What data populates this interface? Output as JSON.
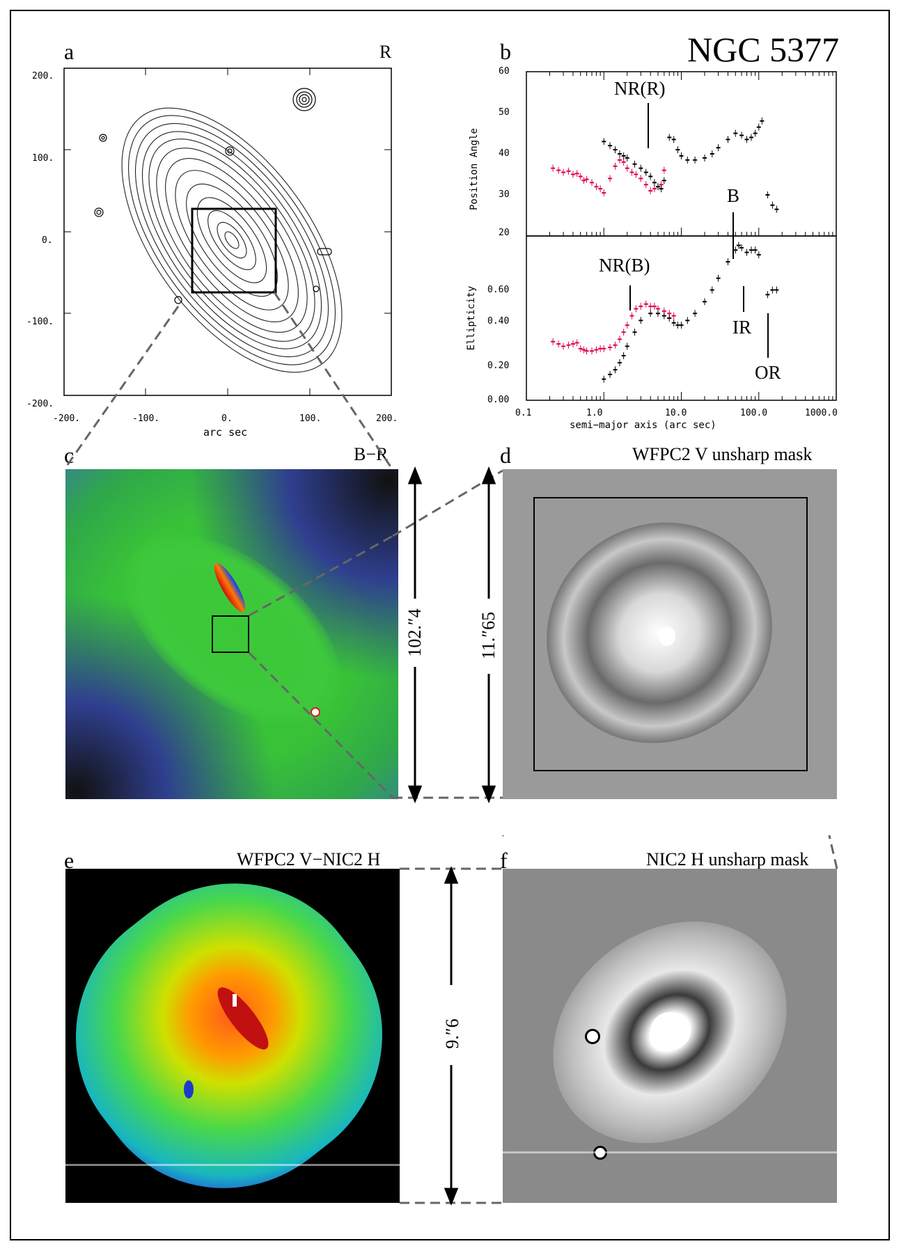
{
  "figure": {
    "galaxy_name": "NGC 5377"
  },
  "panels": {
    "a": {
      "label": "a",
      "band": "R",
      "x_ticks": [
        "-200.",
        "-100.",
        "0.",
        "100.",
        "200."
      ],
      "y_ticks": [
        "200.",
        "100.",
        "0.",
        "-100.",
        "-200."
      ],
      "xlabel": "arc sec"
    },
    "b": {
      "label": "b"
    },
    "c": {
      "label": "c",
      "title": "B−R",
      "scale": "102.″4"
    },
    "d": {
      "label": "d",
      "title": "WFPC2 V unsharp mask",
      "scale": "11.″65"
    },
    "e": {
      "label": "e",
      "title": "WFPC2 V−NIC2 H",
      "scale": "9.″6"
    },
    "f": {
      "label": "f",
      "title": "NIC2 H unsharp mask"
    }
  },
  "chart_data": [
    {
      "type": "scatter",
      "panel": "b-top",
      "ylabel": "Position Angle",
      "xscale": "log",
      "xlim": [
        0.1,
        1000.0
      ],
      "ylim": [
        20,
        60
      ],
      "yticks": [
        "60",
        "50",
        "40",
        "30",
        "20"
      ],
      "annotations": [
        "NR(R)"
      ],
      "series": [
        {
          "color": "#e0004a",
          "x": [
            0.22,
            0.26,
            0.3,
            0.35,
            0.4,
            0.45,
            0.5,
            0.55,
            0.6,
            0.7,
            0.8,
            0.9,
            1.0,
            1.2,
            1.4,
            1.6,
            1.8,
            2.0,
            2.3,
            2.6,
            3.0,
            3.5,
            4.0,
            4.5,
            5.0,
            5.5,
            6.0
          ],
          "y": [
            36.5,
            36.0,
            35.5,
            35.8,
            35.0,
            35.2,
            34.5,
            33.5,
            33.8,
            33.0,
            32.0,
            31.5,
            30.5,
            34.0,
            37.0,
            38.5,
            38.0,
            36.5,
            35.5,
            35.0,
            34.0,
            32.5,
            31.0,
            31.5,
            32.0,
            32.5,
            36.0
          ]
        },
        {
          "color": "#000000",
          "x": [
            1.0,
            1.2,
            1.4,
            1.6,
            1.8,
            2.0,
            2.5,
            3.0,
            3.5,
            4.0,
            4.5,
            5.0,
            5.5,
            6.0,
            7.0,
            8.0,
            9.0,
            10.0,
            12.0,
            15.0,
            20.0,
            25.0,
            30.0,
            40.0,
            50.0,
            60.0,
            70.0,
            80.0,
            90.0,
            100.0,
            110.0,
            130.0,
            150.0,
            170.0
          ],
          "y": [
            43.0,
            42.0,
            41.0,
            40.0,
            39.5,
            39.0,
            37.5,
            36.5,
            35.5,
            34.5,
            33.0,
            32.0,
            31.5,
            33.5,
            44.0,
            43.5,
            41.0,
            39.5,
            38.5,
            38.5,
            39.0,
            40.0,
            41.5,
            43.5,
            45.0,
            44.5,
            43.5,
            44.0,
            45.0,
            46.5,
            48.0,
            30.0,
            27.5,
            26.5
          ]
        }
      ]
    },
    {
      "type": "scatter",
      "panel": "b-bottom",
      "xlabel": "semi−major axis (arc sec)",
      "ylabel": "Ellipticity",
      "xscale": "log",
      "xlim": [
        0.1,
        1000.0
      ],
      "ylim": [
        0.0,
        0.7
      ],
      "xticks": [
        "0.1",
        "1.0",
        "10.0",
        "100.0",
        "1000.0"
      ],
      "yticks": [
        "0.60",
        "0.40",
        "0.20",
        "0.00"
      ],
      "annotations": [
        "B",
        "NR(B)",
        "IR",
        "OR"
      ],
      "series": [
        {
          "color": "#e0004a",
          "x": [
            0.22,
            0.26,
            0.3,
            0.35,
            0.4,
            0.45,
            0.5,
            0.55,
            0.6,
            0.7,
            0.8,
            0.9,
            1.0,
            1.2,
            1.4,
            1.6,
            1.8,
            2.0,
            2.3,
            2.6,
            3.0,
            3.5,
            4.0,
            4.5,
            5.0,
            6.0,
            7.0,
            8.0
          ],
          "y": [
            0.25,
            0.24,
            0.23,
            0.235,
            0.24,
            0.245,
            0.22,
            0.215,
            0.21,
            0.21,
            0.215,
            0.22,
            0.22,
            0.225,
            0.235,
            0.26,
            0.29,
            0.32,
            0.36,
            0.39,
            0.4,
            0.41,
            0.4,
            0.4,
            0.39,
            0.38,
            0.37,
            0.36
          ]
        },
        {
          "color": "#000000",
          "x": [
            1.0,
            1.2,
            1.4,
            1.6,
            1.8,
            2.0,
            2.5,
            3.0,
            4.0,
            5.0,
            6.0,
            7.0,
            8.0,
            9.0,
            10.0,
            12.0,
            15.0,
            20.0,
            25.0,
            30.0,
            40.0,
            50.0,
            55.0,
            60.0,
            70.0,
            80.0,
            90.0,
            100.0,
            130.0,
            150.0,
            170.0
          ],
          "y": [
            0.09,
            0.11,
            0.13,
            0.16,
            0.19,
            0.23,
            0.29,
            0.34,
            0.37,
            0.37,
            0.36,
            0.35,
            0.33,
            0.32,
            0.32,
            0.34,
            0.37,
            0.42,
            0.47,
            0.52,
            0.59,
            0.64,
            0.66,
            0.65,
            0.63,
            0.64,
            0.64,
            0.62,
            0.45,
            0.47,
            0.47
          ]
        }
      ]
    }
  ]
}
